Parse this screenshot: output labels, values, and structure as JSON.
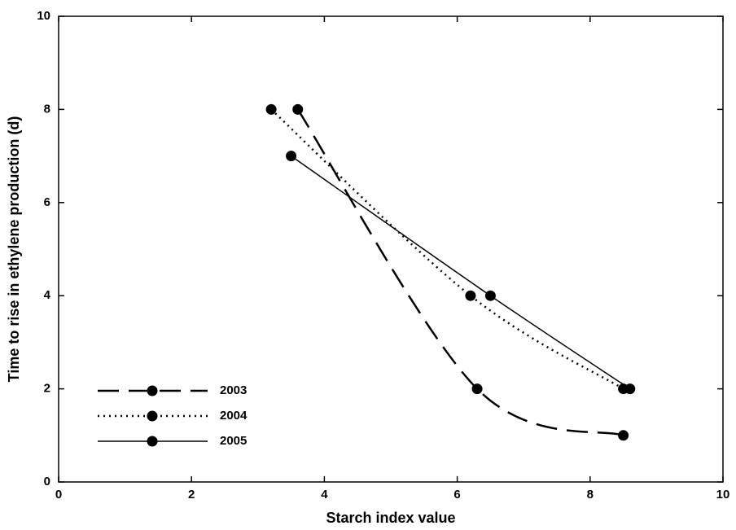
{
  "chart_data": {
    "type": "line",
    "x_label": "Starch index value",
    "y_label": "Time to rise in ethylene production (d)",
    "xlim": [
      0,
      10
    ],
    "xticks": [
      0,
      2,
      4,
      6,
      8,
      10
    ],
    "ylim": [
      0,
      10
    ],
    "yticks": [
      0,
      2,
      4,
      6,
      8,
      10
    ],
    "legend": "lower left",
    "series": [
      {
        "name": "2003",
        "color": "#000000",
        "line_style": "dashed",
        "x": [
          3.6,
          6.3,
          8.5
        ],
        "values": [
          8,
          2,
          1
        ]
      },
      {
        "name": "2004",
        "color": "#000000",
        "line_style": "dotted",
        "x": [
          3.2,
          6.2,
          8.5
        ],
        "values": [
          8,
          4,
          2
        ]
      },
      {
        "name": "2005",
        "color": "#000000",
        "line_style": "solid",
        "x": [
          3.5,
          6.5,
          8.6
        ],
        "values": [
          7,
          4,
          2
        ]
      }
    ]
  }
}
